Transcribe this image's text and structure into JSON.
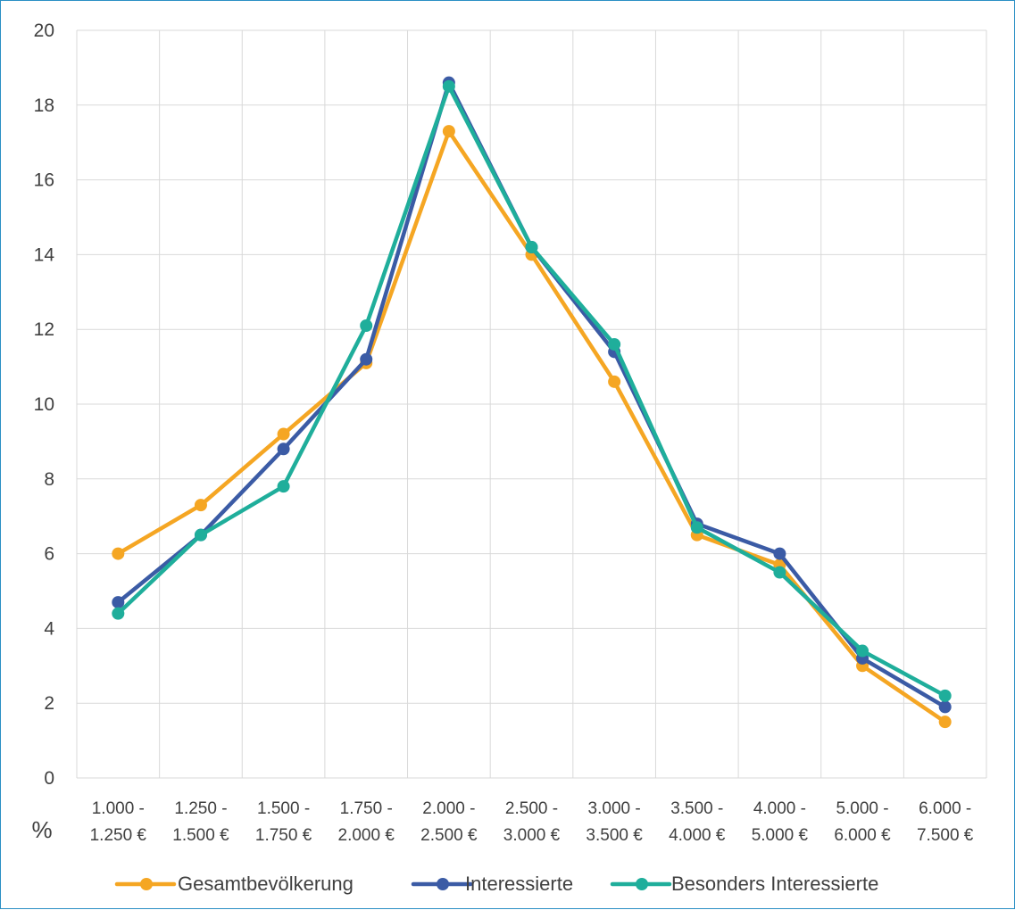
{
  "chart_data": {
    "type": "line",
    "categories": [
      [
        "1.000 -",
        "1.250 €"
      ],
      [
        "1.250 -",
        "1.500 €"
      ],
      [
        "1.500 -",
        "1.750 €"
      ],
      [
        "1.750 -",
        "2.000 €"
      ],
      [
        "2.000 -",
        "2.500 €"
      ],
      [
        "2.500 -",
        "3.000 €"
      ],
      [
        "3.000 -",
        "3.500 €"
      ],
      [
        "3.500 -",
        "4.000 €"
      ],
      [
        "4.000 -",
        "5.000 €"
      ],
      [
        "5.000 -",
        "6.000 €"
      ],
      [
        "6.000 -",
        "7.500 €"
      ]
    ],
    "series": [
      {
        "name": "Gesamtbevölkerung",
        "color": "#f5a623",
        "values": [
          6.0,
          7.3,
          9.2,
          11.1,
          17.3,
          14.0,
          10.6,
          6.5,
          5.7,
          3.0,
          1.5
        ]
      },
      {
        "name": "Interessierte",
        "color": "#3b5ba5",
        "values": [
          4.7,
          6.5,
          8.8,
          11.2,
          18.6,
          14.2,
          11.4,
          6.8,
          6.0,
          3.2,
          1.9
        ]
      },
      {
        "name": "Besonders Interessierte",
        "color": "#1fae9b",
        "values": [
          4.4,
          6.5,
          7.8,
          12.1,
          18.5,
          14.2,
          11.6,
          6.7,
          5.5,
          3.4,
          2.2
        ]
      }
    ],
    "ylim": [
      0,
      20
    ],
    "yticks": [
      "0",
      "2",
      "4",
      "6",
      "8",
      "10",
      "12",
      "14",
      "16",
      "18",
      "20"
    ],
    "yunit": "%",
    "grid": true,
    "legend_position": "bottom"
  }
}
